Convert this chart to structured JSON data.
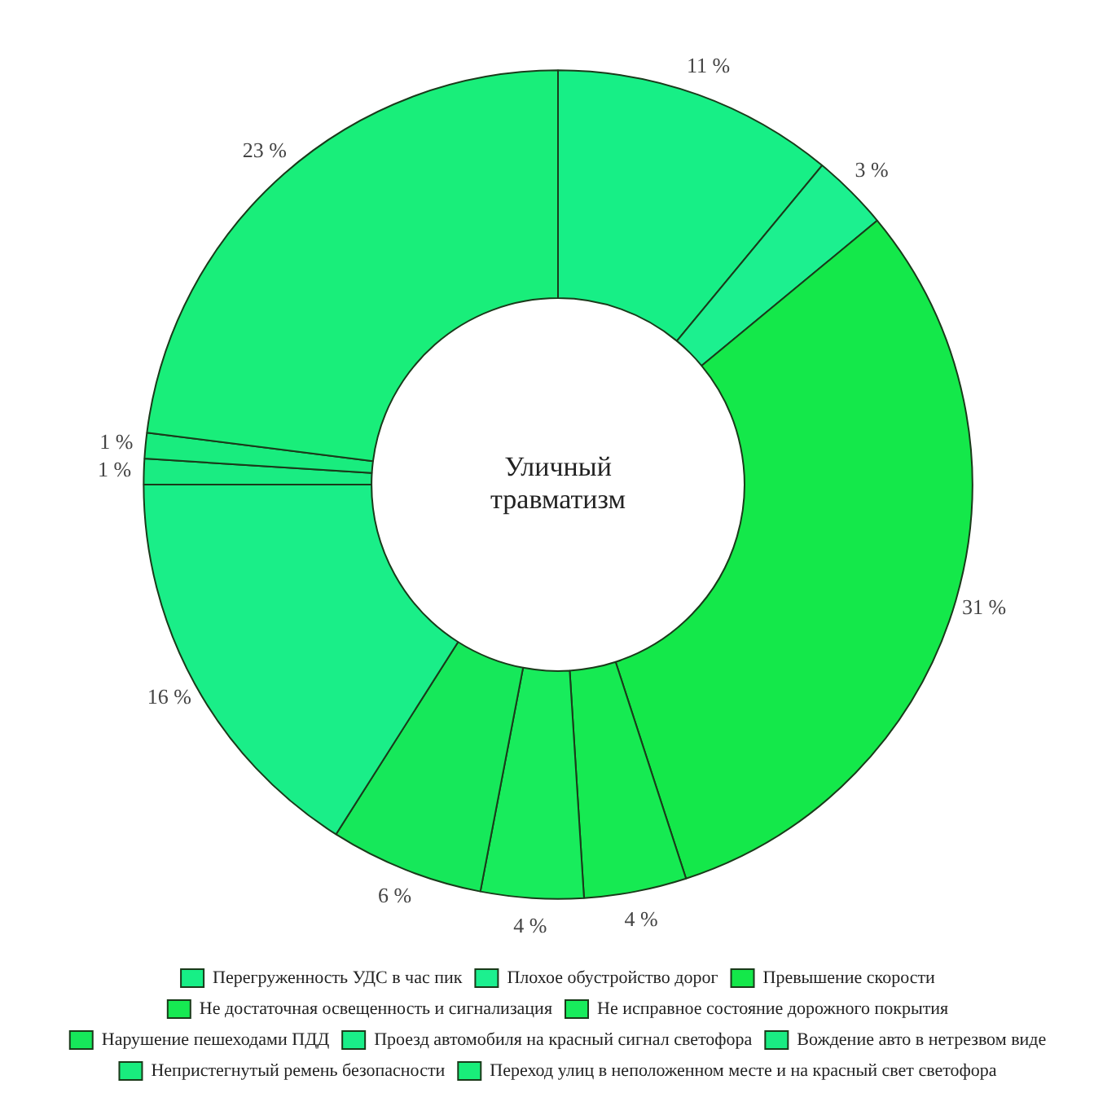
{
  "chart_data": {
    "type": "donut",
    "title": "Уличный травматизм",
    "categories": [
      "Перегруженность УДС в час пик",
      "Плохое обустройство дорог",
      "Превышение скорости",
      "Не достаточная освещенность и сигнализация",
      "Не исправное состояние дорожного покрытия",
      "Нарушение пешеходами ПДД",
      "Проезд автомобиля на красный сигнал светофора",
      "Вождение авто в нетрезвом виде",
      "Непристегнутый ремень безопасности",
      "Переход улиц в неположенном месте и на красный свет светофора"
    ],
    "values": [
      11,
      3,
      31,
      4,
      4,
      6,
      16,
      1,
      1,
      23
    ],
    "value_labels": [
      "11 %",
      "3 %",
      "31 %",
      "4 %",
      "4 %",
      "6 %",
      "16 %",
      "1 %",
      "1 %",
      "23 %"
    ],
    "colors": [
      "#17ef86",
      "#1cf08f",
      "#14e84a",
      "#16ea52",
      "#18ec5c",
      "#16e85a",
      "#1aee88",
      "#1aec82",
      "#19ec7e",
      "#19ee7a"
    ],
    "legend": "bottom"
  }
}
